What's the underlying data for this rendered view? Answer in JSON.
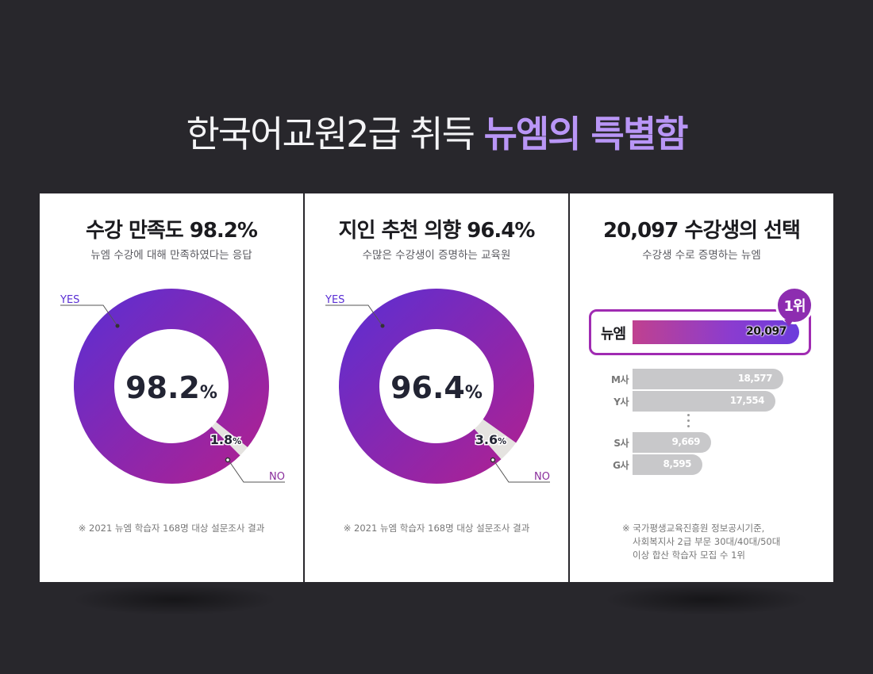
{
  "headline": {
    "normal": "한국어교원2급 취득",
    "accent": "뉴엠의 특별함"
  },
  "colors": {
    "background": "#28272c",
    "accent": "#b996f6",
    "donut_start": "#5a2fd4",
    "donut_end": "#b3208e",
    "donut_remainder": "#e5e3e0",
    "rank_border": "#a02bb2",
    "competitor_bar": "#c8c8ca"
  },
  "cards": [
    {
      "title": "수강 만족도 98.2%",
      "subtitle": "뉴엠 수강에 대해 만족하였다는 응답",
      "footnote": "※ 2021 뉴엠 학습자 168명 대상 설문조사 결과"
    },
    {
      "title": "지인 추천 의향 96.4%",
      "subtitle": "수많은 수강생이 증명하는 교육원",
      "footnote": "※ 2021 뉴엠 학습자 168명 대상 설문조사 결과"
    },
    {
      "title": "20,097 수강생의 선택",
      "subtitle": "수강생 수로 증명하는 뉴엠",
      "footnote_lines": [
        "※ 국가평생교육진흥원 정보공시기준,",
        "사회복지사 2급 부문 30대/40대/50대",
        "이상 합산 학습자 모집 수 1위"
      ]
    }
  ],
  "chart_data": [
    {
      "type": "pie",
      "title": "수강 만족도 98.2%",
      "slices": [
        {
          "label": "YES",
          "value": 98.2
        },
        {
          "label": "NO",
          "value": 1.8
        }
      ],
      "center_value": "98.2",
      "center_unit": "%",
      "small_value": "1.8",
      "small_unit": "%"
    },
    {
      "type": "pie",
      "title": "지인 추천 의향 96.4%",
      "slices": [
        {
          "label": "YES",
          "value": 96.4
        },
        {
          "label": "NO",
          "value": 3.6
        }
      ],
      "center_value": "96.4",
      "center_unit": "%",
      "small_value": "3.6",
      "small_unit": "%"
    },
    {
      "type": "bar",
      "title": "20,097 수강생의 선택",
      "categories": [
        "뉴엠",
        "M사",
        "Y사",
        "S사",
        "G사"
      ],
      "values": [
        20097,
        18577,
        17554,
        9669,
        8595
      ],
      "value_labels": [
        "20,097",
        "18,577",
        "17,554",
        "9,669",
        "8,595"
      ],
      "highlight": "뉴엠",
      "badge": "1위",
      "gap_after_index": 2
    }
  ]
}
